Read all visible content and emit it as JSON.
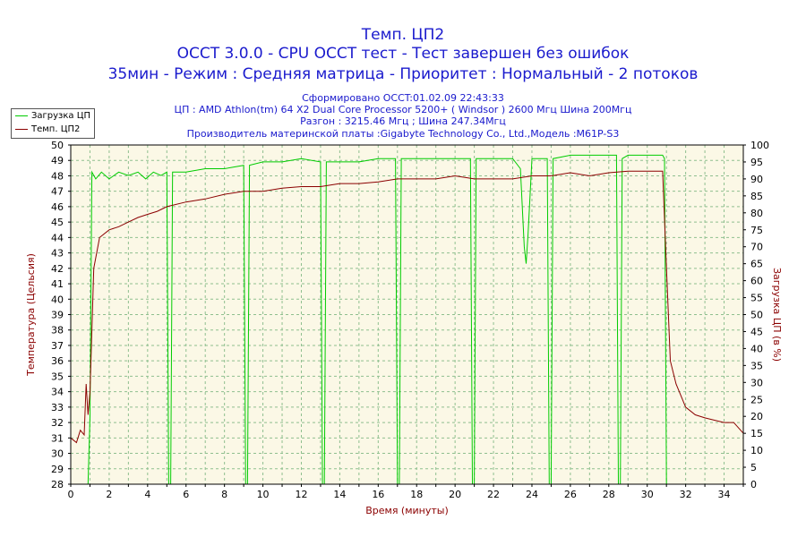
{
  "header": {
    "title": "Темп. ЦП2",
    "line2": "OCCT 3.0.0 - CPU OCCT тест - Тест завершен без ошибок",
    "line3": "35мин - Режим : Средняя матрица - Приоритет : Нормальный - 2 потоков",
    "info1": "Сформировано OCCT:01.02.09 22:43:33",
    "info2": "ЦП : AMD Athlon(tm) 64 X2 Dual Core Processor 5200+ ( Windsor ) 2600 Мгц Шина 200Мгц",
    "info3": "Разгон : 3215.46 Мгц ; Шина 247.34Мгц",
    "info4": "Производитель материнской платы :Gigabyte Technology Co., Ltd.,Модель :M61P-S3"
  },
  "legend": {
    "items": [
      {
        "label": "Загрузка ЦП",
        "color": "#00cc00"
      },
      {
        "label": "Темп. ЦП2",
        "color": "#8b0000"
      }
    ]
  },
  "chart_data": {
    "type": "line",
    "xlabel": "Время (минуты)",
    "ylabel_left": "Температура (Цельсия)",
    "ylabel_right": "Загрузка ЦП (в %)",
    "xlim": [
      0,
      35
    ],
    "ylim_left": [
      28,
      50
    ],
    "ylim_right": [
      0,
      100
    ],
    "x_ticks": [
      0,
      2,
      4,
      6,
      8,
      10,
      12,
      14,
      16,
      18,
      20,
      22,
      24,
      26,
      28,
      30,
      32,
      34
    ],
    "y_left_ticks": [
      28,
      29,
      30,
      31,
      32,
      33,
      34,
      35,
      36,
      37,
      38,
      39,
      40,
      41,
      42,
      43,
      44,
      45,
      46,
      47,
      48,
      49,
      50
    ],
    "y_right_ticks": [
      0,
      5,
      10,
      15,
      20,
      25,
      30,
      35,
      40,
      45,
      50,
      55,
      60,
      65,
      70,
      75,
      80,
      85,
      90,
      95,
      100
    ],
    "grid": true,
    "plot_background": "#fbf8e6",
    "series": [
      {
        "name": "Загрузка ЦП",
        "color": "#00cc00",
        "axis": "right",
        "x": [
          0.9,
          1.0,
          1.1,
          1.3,
          1.6,
          2.0,
          2.5,
          3.0,
          3.5,
          3.9,
          4.3,
          4.7,
          5.0,
          5.1,
          5.2,
          5.3,
          6.0,
          7.0,
          8.0,
          9.0,
          9.1,
          9.2,
          9.3,
          10.0,
          11.0,
          12.0,
          13.0,
          13.1,
          13.2,
          13.3,
          14.0,
          15.0,
          16.0,
          16.9,
          17.0,
          17.1,
          17.2,
          18.0,
          19.0,
          20.0,
          20.8,
          20.9,
          21.0,
          21.1,
          22.0,
          23.0,
          23.4,
          23.6,
          23.7,
          23.8,
          24.0,
          24.8,
          24.9,
          25.0,
          25.1,
          26.0,
          27.0,
          28.4,
          28.5,
          28.6,
          28.7,
          29.0,
          30.0,
          30.8,
          30.9,
          31.0,
          31.1,
          35.0
        ],
        "y": [
          0,
          20,
          92,
          90,
          92,
          90,
          92,
          91,
          92,
          90,
          92,
          91,
          92,
          0,
          0,
          92,
          92,
          93,
          93,
          94,
          0,
          0,
          94,
          95,
          95,
          96,
          95,
          0,
          0,
          95,
          95,
          95,
          96,
          96,
          0,
          0,
          96,
          96,
          96,
          96,
          96,
          0,
          0,
          96,
          96,
          96,
          93,
          70,
          65,
          74,
          96,
          96,
          0,
          0,
          96,
          97,
          97,
          97,
          0,
          0,
          96,
          97,
          97,
          97,
          96,
          0,
          0,
          0
        ]
      },
      {
        "name": "Темп. ЦП2",
        "color": "#8b0000",
        "axis": "left",
        "x": [
          0,
          0.3,
          0.5,
          0.7,
          0.8,
          0.9,
          1.0,
          1.1,
          1.2,
          1.5,
          2.0,
          2.5,
          3.0,
          3.5,
          4.0,
          4.5,
          5.0,
          6.0,
          7.0,
          8.0,
          9.0,
          10.0,
          11.0,
          12.0,
          13.0,
          14.0,
          15.0,
          16.0,
          17.0,
          18.0,
          19.0,
          20.0,
          21.0,
          22.0,
          23.0,
          24.0,
          25.0,
          26.0,
          27.0,
          28.0,
          29.0,
          30.0,
          30.8,
          31.0,
          31.2,
          31.5,
          32.0,
          32.5,
          33.0,
          34.0,
          34.5,
          35.0
        ],
        "y": [
          31,
          30.7,
          31.5,
          31.2,
          34.5,
          32.5,
          34,
          38,
          42,
          44,
          44.5,
          44.7,
          45,
          45.3,
          45.5,
          45.7,
          46,
          46.3,
          46.5,
          46.8,
          47,
          47,
          47.2,
          47.3,
          47.3,
          47.5,
          47.5,
          47.6,
          47.8,
          47.8,
          47.8,
          48,
          47.8,
          47.8,
          47.8,
          48,
          48,
          48.2,
          48,
          48.2,
          48.3,
          48.3,
          48.3,
          42,
          36,
          34.5,
          33,
          32.5,
          32.3,
          32,
          32,
          31.3
        ]
      }
    ]
  }
}
